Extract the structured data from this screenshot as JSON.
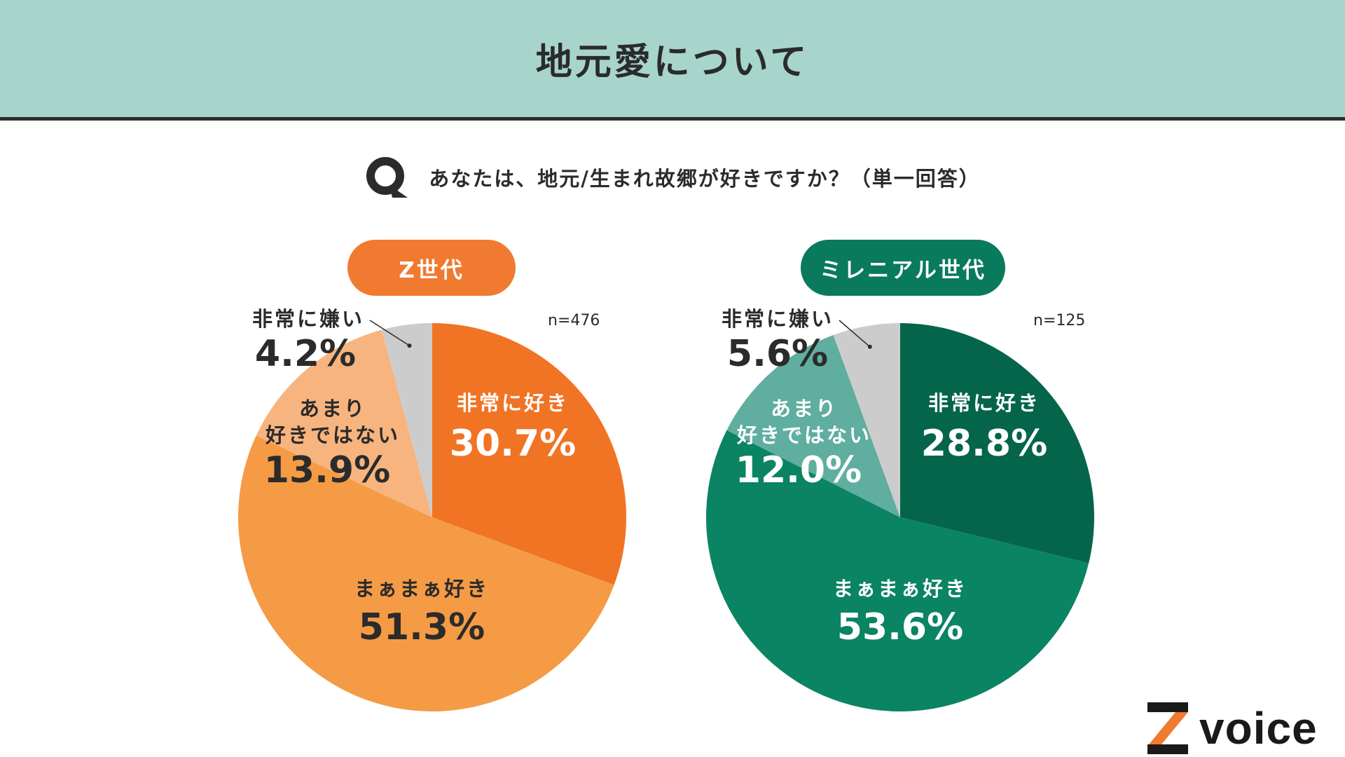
{
  "header": {
    "title": "地元愛について"
  },
  "question": {
    "text": "あなたは、地元/生まれ故郷が好きですか？（単一回答）"
  },
  "logo": {
    "word": "voice"
  },
  "colors": {
    "header_bg": "#a8d5cb",
    "orange": "#f07a30",
    "teal": "#0a7a5c"
  },
  "chart_data": [
    {
      "type": "pie",
      "title": "Z世代",
      "n_label": "n=476",
      "slices": [
        {
          "label": "非常に好き",
          "value": 30.7,
          "display": "30.7%",
          "color": "#f07424"
        },
        {
          "label": "まぁまぁ好き",
          "value": 51.3,
          "display": "51.3%",
          "color": "#f59b45"
        },
        {
          "label": "あまり好きではない",
          "value": 13.9,
          "display": "13.9%",
          "color": "#f7b47f"
        },
        {
          "label": "非常に嫌い",
          "value": 4.2,
          "display": "4.2%",
          "color": "#cccccc"
        }
      ]
    },
    {
      "type": "pie",
      "title": "ミレニアル世代",
      "n_label": "n=125",
      "slices": [
        {
          "label": "非常に好き",
          "value": 28.8,
          "display": "28.8%",
          "color": "#05654b"
        },
        {
          "label": "まぁまぁ好き",
          "value": 53.6,
          "display": "53.6%",
          "color": "#0a8463"
        },
        {
          "label": "あまり好きではない",
          "value": 12.0,
          "display": "12.0%",
          "color": "#5fae9f"
        },
        {
          "label": "非常に嫌い",
          "value": 5.6,
          "display": "5.6%",
          "color": "#cccccc"
        }
      ]
    }
  ]
}
